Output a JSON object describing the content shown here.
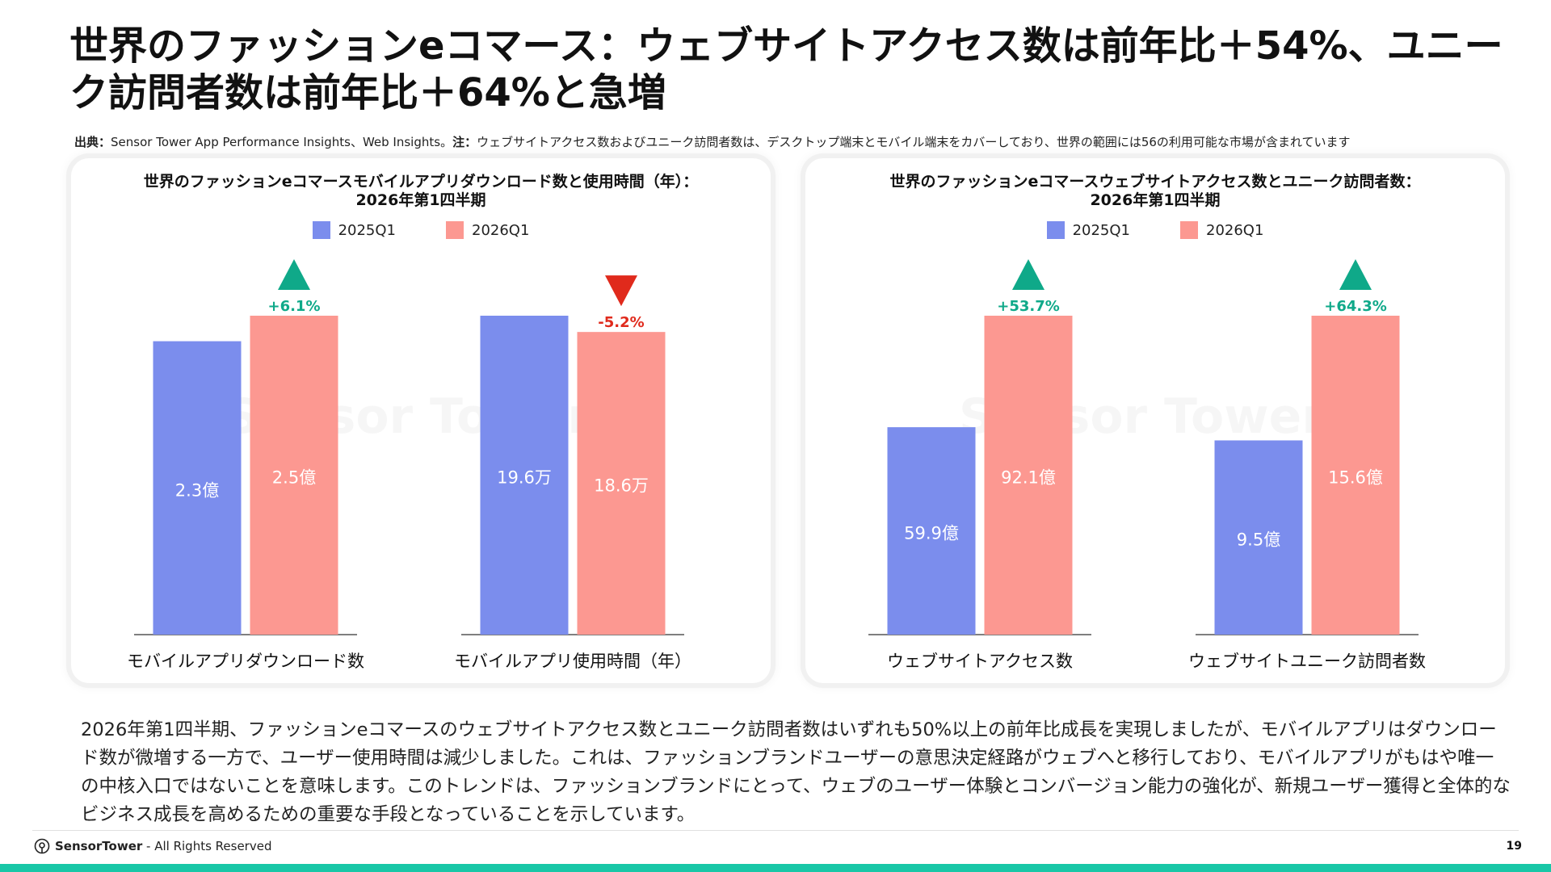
{
  "title": "世界のファッションeコマース：ウェブサイトアクセス数は前年比＋54%、ユニーク訪問者数は前年比＋64%と急増",
  "source": {
    "label_source": "出典：",
    "source_text": "Sensor Tower App Performance Insights、Web Insights。",
    "label_note": "注：",
    "note_text": "ウェブサイトアクセス数およびユニーク訪問者数は、デスクトップ端末とモバイル端末をカバーしており、世界の範囲には56の利用可能な市場が含まれています"
  },
  "watermark": "Sensor Tower",
  "colors": {
    "series_2025": "#7b8ded",
    "series_2026": "#fc9891",
    "up": "#0fa989",
    "down": "#e02a1c"
  },
  "chart_data": [
    {
      "type": "bar",
      "title": "世界のファッションeコマースモバイルアプリダウンロード数と使用時間（年）：\n2026年第1四半期",
      "legend": [
        "2025Q1",
        "2026Q1"
      ],
      "legend_position": "top-center",
      "categories": [
        "モバイルアプリダウンロード数",
        "モバイルアプリ使用時間（年）"
      ],
      "series": [
        {
          "name": "2025Q1",
          "values": [
            2.3,
            19.6
          ],
          "labels": [
            "2.3億",
            "19.6万"
          ]
        },
        {
          "name": "2026Q1",
          "values": [
            2.5,
            18.6
          ],
          "labels": [
            "2.5億",
            "18.6万"
          ]
        }
      ],
      "changes": [
        {
          "text": "+6.1%",
          "direction": "up"
        },
        {
          "text": "-5.2%",
          "direction": "down"
        }
      ],
      "independent_scale_per_group": true,
      "grid": false
    },
    {
      "type": "bar",
      "title": "世界のファッションeコマースウェブサイトアクセス数とユニーク訪問者数：\n2026年第1四半期",
      "legend": [
        "2025Q1",
        "2026Q1"
      ],
      "legend_position": "top-center",
      "categories": [
        "ウェブサイトアクセス数",
        "ウェブサイトユニーク訪問者数"
      ],
      "series": [
        {
          "name": "2025Q1",
          "values": [
            59.9,
            9.5
          ],
          "labels": [
            "59.9億",
            "9.5億"
          ]
        },
        {
          "name": "2026Q1",
          "values": [
            92.1,
            15.6
          ],
          "labels": [
            "92.1億",
            "15.6億"
          ]
        }
      ],
      "changes": [
        {
          "text": "+53.7%",
          "direction": "up"
        },
        {
          "text": "+64.3%",
          "direction": "up"
        }
      ],
      "independent_scale_per_group": true,
      "grid": false
    }
  ],
  "summary": "2026年第1四半期、ファッションeコマースのウェブサイトアクセス数とユニーク訪問者数はいずれも50%以上の前年比成長を実現しましたが、モバイルアプリはダウンロード数が微増する一方で、ユーザー使用時間は減少しました。これは、ファッションブランドユーザーの意思決定経路がウェブへと移行しており、モバイルアプリがもはや唯一の中核入口ではないことを意味します。このトレンドは、ファッションブランドにとって、ウェブのユーザー体験とコンバージョン能力の強化が、新規ユーザー獲得と全体的なビジネス成長を高めるための重要な手段となっていることを示しています。",
  "footer": {
    "brand": "SensorTower",
    "rights": " - All Rights Reserved",
    "page": "19"
  }
}
